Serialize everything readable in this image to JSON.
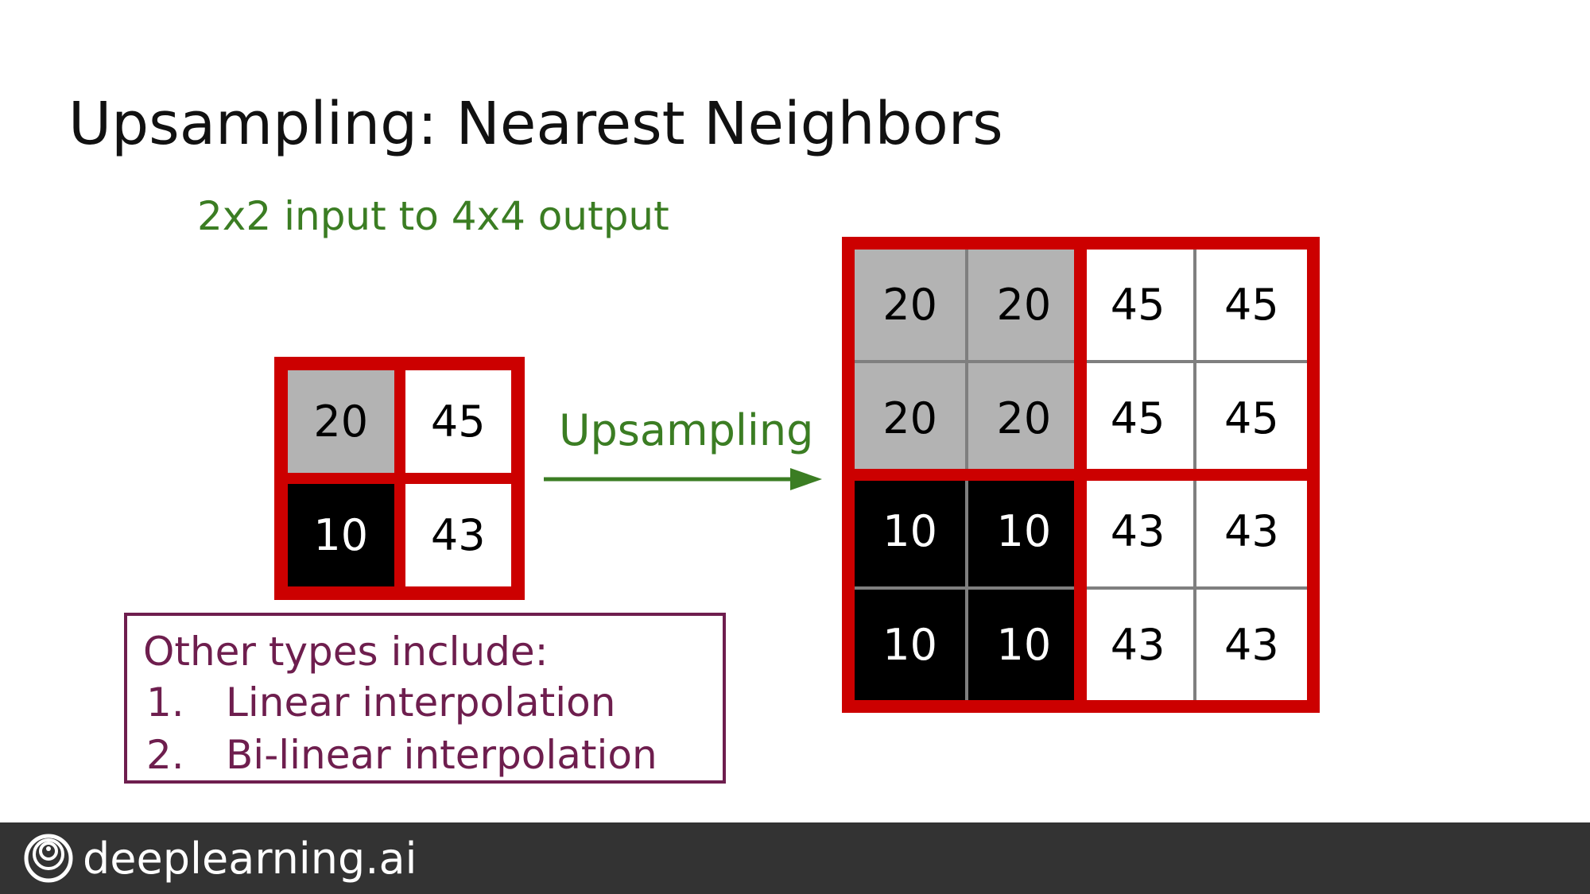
{
  "title": "Upsampling: Nearest Neighbors",
  "subtitle": "2x2 input to 4x4 output",
  "arrow_label": "Upsampling",
  "input_grid": [
    [
      "20",
      "45"
    ],
    [
      "10",
      "43"
    ]
  ],
  "output_grid": [
    [
      "20",
      "20",
      "45",
      "45"
    ],
    [
      "20",
      "20",
      "45",
      "45"
    ],
    [
      "10",
      "10",
      "43",
      "43"
    ],
    [
      "10",
      "10",
      "43",
      "43"
    ]
  ],
  "other_types": {
    "heading": "Other types include:",
    "items": [
      {
        "num": "1.",
        "label": "Linear interpolation"
      },
      {
        "num": "2.",
        "label": "Bi-linear interpolation"
      }
    ]
  },
  "footer": {
    "brand": "deeplearning.ai",
    "logo_icon": "deeplearning-logo-icon"
  },
  "colors": {
    "red": "#cc0000",
    "green": "#3b7d23",
    "purple": "#6e1e4e",
    "gray": "#b3b3b3",
    "black": "#000000",
    "footer_bg": "#333333"
  }
}
